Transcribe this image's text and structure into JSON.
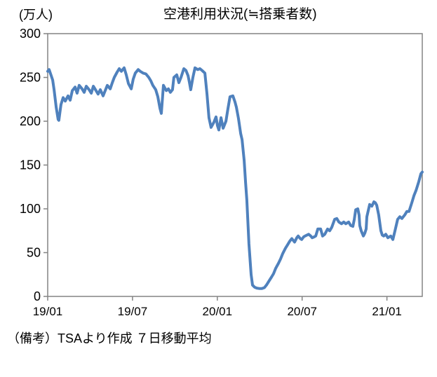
{
  "footer": {
    "note": "（備考）TSAより作成 ７日移動平均"
  },
  "chart_data": {
    "type": "line",
    "title": "空港利用状況(≒搭乗者数)",
    "ylabel": "(万人)",
    "xlabel": "",
    "x_unit": "months_since_19/01",
    "x_tick_labels": [
      "19/01",
      "19/07",
      "20/01",
      "20/07",
      "21/01"
    ],
    "x_tick_positions": [
      0,
      6,
      12,
      18,
      24
    ],
    "xlim": [
      0,
      26.5
    ],
    "y_ticks": [
      0,
      50,
      100,
      150,
      200,
      250,
      300
    ],
    "ylim": [
      0,
      300
    ],
    "grid": false,
    "legend_position": "none",
    "line_color": "#4F81BD",
    "axis_color": "#848484",
    "points": [
      [
        0.0,
        257
      ],
      [
        0.1,
        259
      ],
      [
        0.25,
        252
      ],
      [
        0.35,
        247
      ],
      [
        0.45,
        236
      ],
      [
        0.6,
        216
      ],
      [
        0.74,
        202
      ],
      [
        0.79,
        201
      ],
      [
        0.94,
        219
      ],
      [
        1.09,
        227
      ],
      [
        1.24,
        223
      ],
      [
        1.44,
        229
      ],
      [
        1.59,
        224
      ],
      [
        1.74,
        235
      ],
      [
        1.94,
        239
      ],
      [
        2.08,
        232
      ],
      [
        2.23,
        241
      ],
      [
        2.43,
        237
      ],
      [
        2.58,
        233
      ],
      [
        2.73,
        240
      ],
      [
        2.93,
        236
      ],
      [
        3.08,
        232
      ],
      [
        3.23,
        240
      ],
      [
        3.42,
        235
      ],
      [
        3.57,
        231
      ],
      [
        3.72,
        236
      ],
      [
        3.92,
        229
      ],
      [
        4.07,
        235
      ],
      [
        4.22,
        241
      ],
      [
        4.42,
        237
      ],
      [
        4.57,
        244
      ],
      [
        4.71,
        250
      ],
      [
        4.91,
        256
      ],
      [
        5.06,
        260
      ],
      [
        5.21,
        257
      ],
      [
        5.41,
        261
      ],
      [
        5.56,
        253
      ],
      [
        5.71,
        243
      ],
      [
        5.91,
        237
      ],
      [
        6.05,
        248
      ],
      [
        6.2,
        255
      ],
      [
        6.4,
        259
      ],
      [
        6.55,
        257
      ],
      [
        6.75,
        255
      ],
      [
        6.95,
        254
      ],
      [
        7.15,
        250
      ],
      [
        7.3,
        246
      ],
      [
        7.44,
        241
      ],
      [
        7.64,
        236
      ],
      [
        7.79,
        228
      ],
      [
        7.94,
        215
      ],
      [
        8.04,
        209
      ],
      [
        8.19,
        241
      ],
      [
        8.39,
        235
      ],
      [
        8.54,
        237
      ],
      [
        8.68,
        233
      ],
      [
        8.83,
        236
      ],
      [
        8.93,
        250
      ],
      [
        9.13,
        253
      ],
      [
        9.28,
        244
      ],
      [
        9.43,
        250
      ],
      [
        9.63,
        260
      ],
      [
        9.78,
        258
      ],
      [
        9.93,
        252
      ],
      [
        10.02,
        245
      ],
      [
        10.12,
        236
      ],
      [
        10.27,
        250
      ],
      [
        10.42,
        261
      ],
      [
        10.62,
        259
      ],
      [
        10.77,
        260
      ],
      [
        10.92,
        258
      ],
      [
        11.12,
        255
      ],
      [
        11.27,
        231
      ],
      [
        11.41,
        204
      ],
      [
        11.56,
        193
      ],
      [
        11.76,
        199
      ],
      [
        11.91,
        205
      ],
      [
        12.01,
        195
      ],
      [
        12.11,
        190
      ],
      [
        12.26,
        204
      ],
      [
        12.41,
        192
      ],
      [
        12.61,
        200
      ],
      [
        12.75,
        214
      ],
      [
        12.9,
        228
      ],
      [
        13.1,
        229
      ],
      [
        13.25,
        222
      ],
      [
        13.35,
        216
      ],
      [
        13.5,
        203
      ],
      [
        13.65,
        186
      ],
      [
        13.75,
        179
      ],
      [
        13.9,
        155
      ],
      [
        14.0,
        130
      ],
      [
        14.09,
        110
      ],
      [
        14.24,
        60
      ],
      [
        14.39,
        25
      ],
      [
        14.49,
        13
      ],
      [
        14.64,
        10.5
      ],
      [
        14.79,
        9.5
      ],
      [
        14.99,
        9
      ],
      [
        15.14,
        9
      ],
      [
        15.33,
        10
      ],
      [
        15.48,
        13
      ],
      [
        15.63,
        17
      ],
      [
        15.83,
        22
      ],
      [
        15.98,
        26
      ],
      [
        16.13,
        32
      ],
      [
        16.33,
        38
      ],
      [
        16.48,
        43
      ],
      [
        16.63,
        49
      ],
      [
        16.82,
        55
      ],
      [
        16.97,
        59
      ],
      [
        17.12,
        63
      ],
      [
        17.27,
        66
      ],
      [
        17.47,
        62
      ],
      [
        17.62,
        67
      ],
      [
        17.72,
        69
      ],
      [
        17.87,
        66
      ],
      [
        17.97,
        65
      ],
      [
        18.11,
        68
      ],
      [
        18.21,
        69
      ],
      [
        18.46,
        71
      ],
      [
        18.61,
        69
      ],
      [
        18.71,
        67
      ],
      [
        18.86,
        68
      ],
      [
        18.96,
        69
      ],
      [
        19.11,
        77
      ],
      [
        19.31,
        77
      ],
      [
        19.45,
        69
      ],
      [
        19.6,
        71
      ],
      [
        19.8,
        77
      ],
      [
        19.95,
        75
      ],
      [
        20.1,
        79
      ],
      [
        20.3,
        88
      ],
      [
        20.45,
        89
      ],
      [
        20.6,
        85
      ],
      [
        20.79,
        83
      ],
      [
        20.94,
        85
      ],
      [
        21.09,
        83
      ],
      [
        21.29,
        85
      ],
      [
        21.44,
        81
      ],
      [
        21.59,
        80
      ],
      [
        21.69,
        88
      ],
      [
        21.79,
        99
      ],
      [
        21.94,
        100
      ],
      [
        22.03,
        93
      ],
      [
        22.08,
        81
      ],
      [
        22.18,
        75
      ],
      [
        22.28,
        71
      ],
      [
        22.33,
        69
      ],
      [
        22.43,
        72
      ],
      [
        22.53,
        77
      ],
      [
        22.58,
        91
      ],
      [
        22.68,
        98
      ],
      [
        22.78,
        105
      ],
      [
        22.93,
        103
      ],
      [
        23.08,
        108
      ],
      [
        23.18,
        107
      ],
      [
        23.28,
        104
      ],
      [
        23.42,
        93
      ],
      [
        23.57,
        75
      ],
      [
        23.67,
        70
      ],
      [
        23.77,
        69
      ],
      [
        23.92,
        71
      ],
      [
        24.07,
        67
      ],
      [
        24.17,
        68
      ],
      [
        24.27,
        69
      ],
      [
        24.42,
        65
      ],
      [
        24.57,
        75
      ],
      [
        24.76,
        88
      ],
      [
        24.91,
        91
      ],
      [
        25.06,
        89
      ],
      [
        25.26,
        93
      ],
      [
        25.41,
        97
      ],
      [
        25.56,
        97
      ],
      [
        25.76,
        107
      ],
      [
        25.91,
        115
      ],
      [
        26.06,
        121
      ],
      [
        26.25,
        131
      ],
      [
        26.4,
        140
      ],
      [
        26.5,
        142
      ]
    ]
  }
}
